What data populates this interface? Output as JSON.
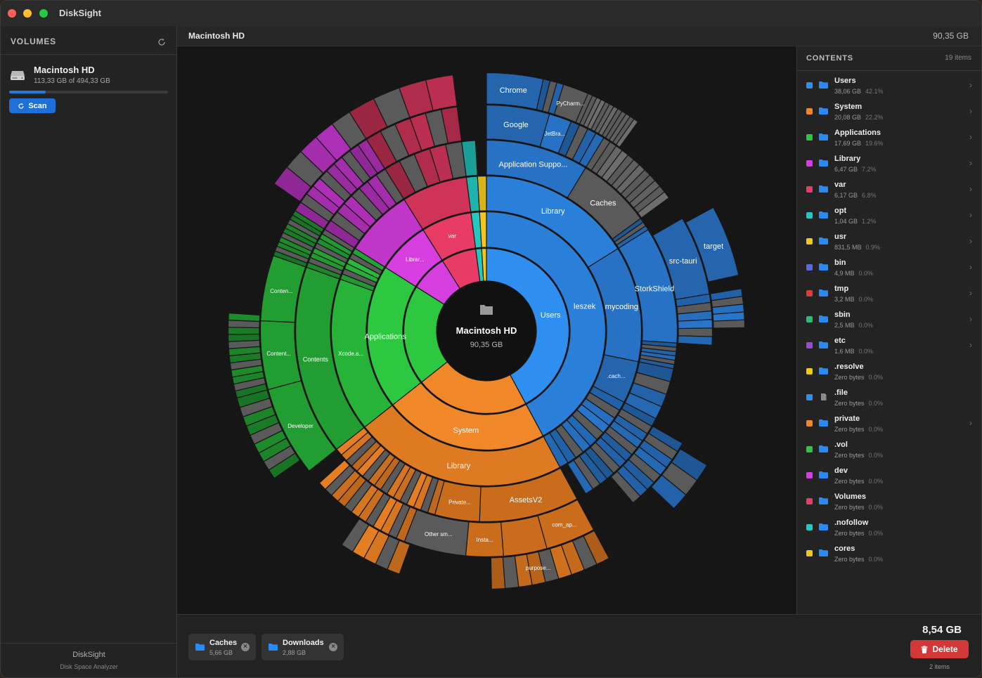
{
  "app": {
    "title": "DiskSight"
  },
  "sidebar": {
    "header": "VOLUMES",
    "volume": {
      "name": "Macintosh HD",
      "size_text": "113,33 GB of 494,33 GB",
      "used_fraction": 0.229
    },
    "scan_label": "Scan",
    "footer_title": "DiskSight",
    "footer_subtitle": "Disk Space Analyzer"
  },
  "main": {
    "title": "Macintosh HD",
    "size": "90,35 GB"
  },
  "chart": {
    "center_title": "Macintosh HD",
    "center_size": "90,35 GB"
  },
  "contents": {
    "header": "CONTENTS",
    "count": "19 items",
    "items": [
      {
        "name": "Users",
        "size": "38,06 GB",
        "pct": "42.1%",
        "color": "#2f8ff0",
        "icon": "folder-icon",
        "chevron": true
      },
      {
        "name": "System",
        "size": "20,08 GB",
        "pct": "22.2%",
        "color": "#f0882a",
        "icon": "folder-icon",
        "chevron": true
      },
      {
        "name": "Applications",
        "size": "17,69 GB",
        "pct": "19.6%",
        "color": "#2ec840",
        "icon": "folder-icon",
        "chevron": true
      },
      {
        "name": "Library",
        "size": "6,47 GB",
        "pct": "7.2%",
        "color": "#d63ee0",
        "icon": "folder-icon",
        "chevron": true
      },
      {
        "name": "var",
        "size": "6,17 GB",
        "pct": "6.8%",
        "color": "#e83c66",
        "icon": "folder-icon",
        "chevron": true
      },
      {
        "name": "opt",
        "size": "1,04 GB",
        "pct": "1.2%",
        "color": "#22c9c2",
        "icon": "folder-icon",
        "chevron": true
      },
      {
        "name": "usr",
        "size": "831,5 MB",
        "pct": "0.9%",
        "color": "#f0c81c",
        "icon": "folder-icon",
        "chevron": true
      },
      {
        "name": "bin",
        "size": "4,9 MB",
        "pct": "0.0%",
        "color": "#5b68e0",
        "icon": "folder-icon",
        "chevron": true
      },
      {
        "name": "tmp",
        "size": "3,2 MB",
        "pct": "0.0%",
        "color": "#e03a3a",
        "icon": "folder-icon",
        "chevron": true
      },
      {
        "name": "sbin",
        "size": "2,5 MB",
        "pct": "0.0%",
        "color": "#2fba76",
        "icon": "folder-icon",
        "chevron": true
      },
      {
        "name": "etc",
        "size": "1,6 MB",
        "pct": "0.0%",
        "color": "#9a48d8",
        "icon": "folder-icon",
        "chevron": true
      },
      {
        "name": ".resolve",
        "size": "Zero bytes",
        "pct": "0.0%",
        "color": "#f0c81c",
        "icon": "folder-icon",
        "chevron": false
      },
      {
        "name": ".file",
        "size": "Zero bytes",
        "pct": "0.0%",
        "color": "#2f8ff0",
        "icon": "file-icon",
        "chevron": false
      },
      {
        "name": "private",
        "size": "Zero bytes",
        "pct": "0.0%",
        "color": "#f0882a",
        "icon": "folder-icon",
        "chevron": true
      },
      {
        "name": ".vol",
        "size": "Zero bytes",
        "pct": "0.0%",
        "color": "#2ec840",
        "icon": "folder-icon",
        "chevron": false
      },
      {
        "name": "dev",
        "size": "Zero bytes",
        "pct": "0.0%",
        "color": "#d63ee0",
        "icon": "folder-icon",
        "chevron": false
      },
      {
        "name": "Volumes",
        "size": "Zero bytes",
        "pct": "0.0%",
        "color": "#e83c66",
        "icon": "folder-icon",
        "chevron": false
      },
      {
        "name": ".nofollow",
        "size": "Zero bytes",
        "pct": "0.0%",
        "color": "#22c9c2",
        "icon": "folder-icon",
        "chevron": false
      },
      {
        "name": "cores",
        "size": "Zero bytes",
        "pct": "0.0%",
        "color": "#f0c81c",
        "icon": "folder-icon",
        "chevron": false
      }
    ]
  },
  "selection": {
    "items": [
      {
        "name": "Caches",
        "size": "5,66 GB"
      },
      {
        "name": "Downloads",
        "size": "2,88 GB"
      }
    ],
    "total": "8,54 GB",
    "delete_label": "Delete",
    "count_text": "2 items"
  },
  "chart_data": {
    "type": "sunburst",
    "rings": [
      {
        "level": 1,
        "segments": [
          {
            "label": "Users",
            "value": 38.06,
            "color": "#2f8ff0"
          },
          {
            "label": "System",
            "value": 20.08,
            "color": "#f0882a"
          },
          {
            "label": "Applications",
            "value": 17.69,
            "color": "#2ec840"
          },
          {
            "label": "Library",
            "value": 6.47,
            "color": "#d63ee0"
          },
          {
            "label": "var",
            "value": 6.17,
            "color": "#e83c66"
          },
          {
            "label": "opt",
            "value": 1.04,
            "color": "#22c9c2"
          },
          {
            "label": "usr",
            "value": 0.83,
            "color": "#f0c81c"
          }
        ]
      },
      {
        "level": 2,
        "segments": [
          {
            "label": "leszek",
            "parent": "Users",
            "value": 38.06
          }
        ]
      },
      {
        "level": 3,
        "segments": [
          {
            "label": "Library",
            "parent": "leszek",
            "value": 14.55
          },
          {
            "label": "mycoding",
            "parent": "leszek",
            "value": 10.9
          },
          {
            "label": ".cach...",
            "parent": "leszek",
            "value": 4.0
          },
          {
            "label": "",
            "parent": "leszek",
            "value": 8.61
          },
          {
            "label": "Library",
            "parent": "System",
            "value": 20.08
          },
          {
            "label": "Xcode.a...",
            "parent": "Applications",
            "value": 14.5
          },
          {
            "label": "",
            "parent": "Applications",
            "value": 3.19
          },
          {
            "label": "Librar...",
            "parent": "Library",
            "value": 6.47
          }
        ]
      },
      {
        "level": 4,
        "segments": [
          {
            "label": "Application Suppo...",
            "parent": "Library",
            "value": 7.8
          },
          {
            "label": "Caches",
            "parent": "Library",
            "value": 5.66
          },
          {
            "label": "StorkShield",
            "parent": "mycoding",
            "value": 6.5
          },
          {
            "label": "AssetsV2",
            "parent": "Library",
            "value": 8.0
          },
          {
            "label": "Private...",
            "parent": "Library",
            "value": 3.5
          },
          {
            "label": "Other sm...",
            "parent": "Library",
            "value": 5.0
          },
          {
            "label": "Contents",
            "parent": "Xcode.a...",
            "value": 14.5
          }
        ]
      },
      {
        "level": 5,
        "segments": [
          {
            "label": "Google",
            "parent": "Application Suppo...",
            "value": 4.0
          },
          {
            "label": "JetBra...",
            "parent": "Application Suppo...",
            "value": 1.3
          },
          {
            "label": "src-tauri",
            "parent": "StorkShield",
            "value": 4.6
          },
          {
            "label": "com_ap...",
            "parent": "AssetsV2",
            "value": 2.8
          },
          {
            "label": "Insta...",
            "parent": "AssetsV2",
            "value": 2.4
          },
          {
            "label": "purpose...",
            "parent": "AssetsV2",
            "value": 2.4
          },
          {
            "label": "Developer",
            "parent": "Contents",
            "value": 6.0
          },
          {
            "label": "Content...",
            "parent": "Contents",
            "value": 4.5
          },
          {
            "label": "Conten...",
            "parent": "Contents",
            "value": 4.0
          }
        ]
      },
      {
        "level": 6,
        "segments": [
          {
            "label": "Chrome",
            "parent": "Google",
            "value": 2.8
          },
          {
            "label": "PyCharm...",
            "parent": "JetBra...",
            "value": 1.1
          },
          {
            "label": "target",
            "parent": "src-tauri",
            "value": 3.8
          }
        ]
      }
    ]
  }
}
